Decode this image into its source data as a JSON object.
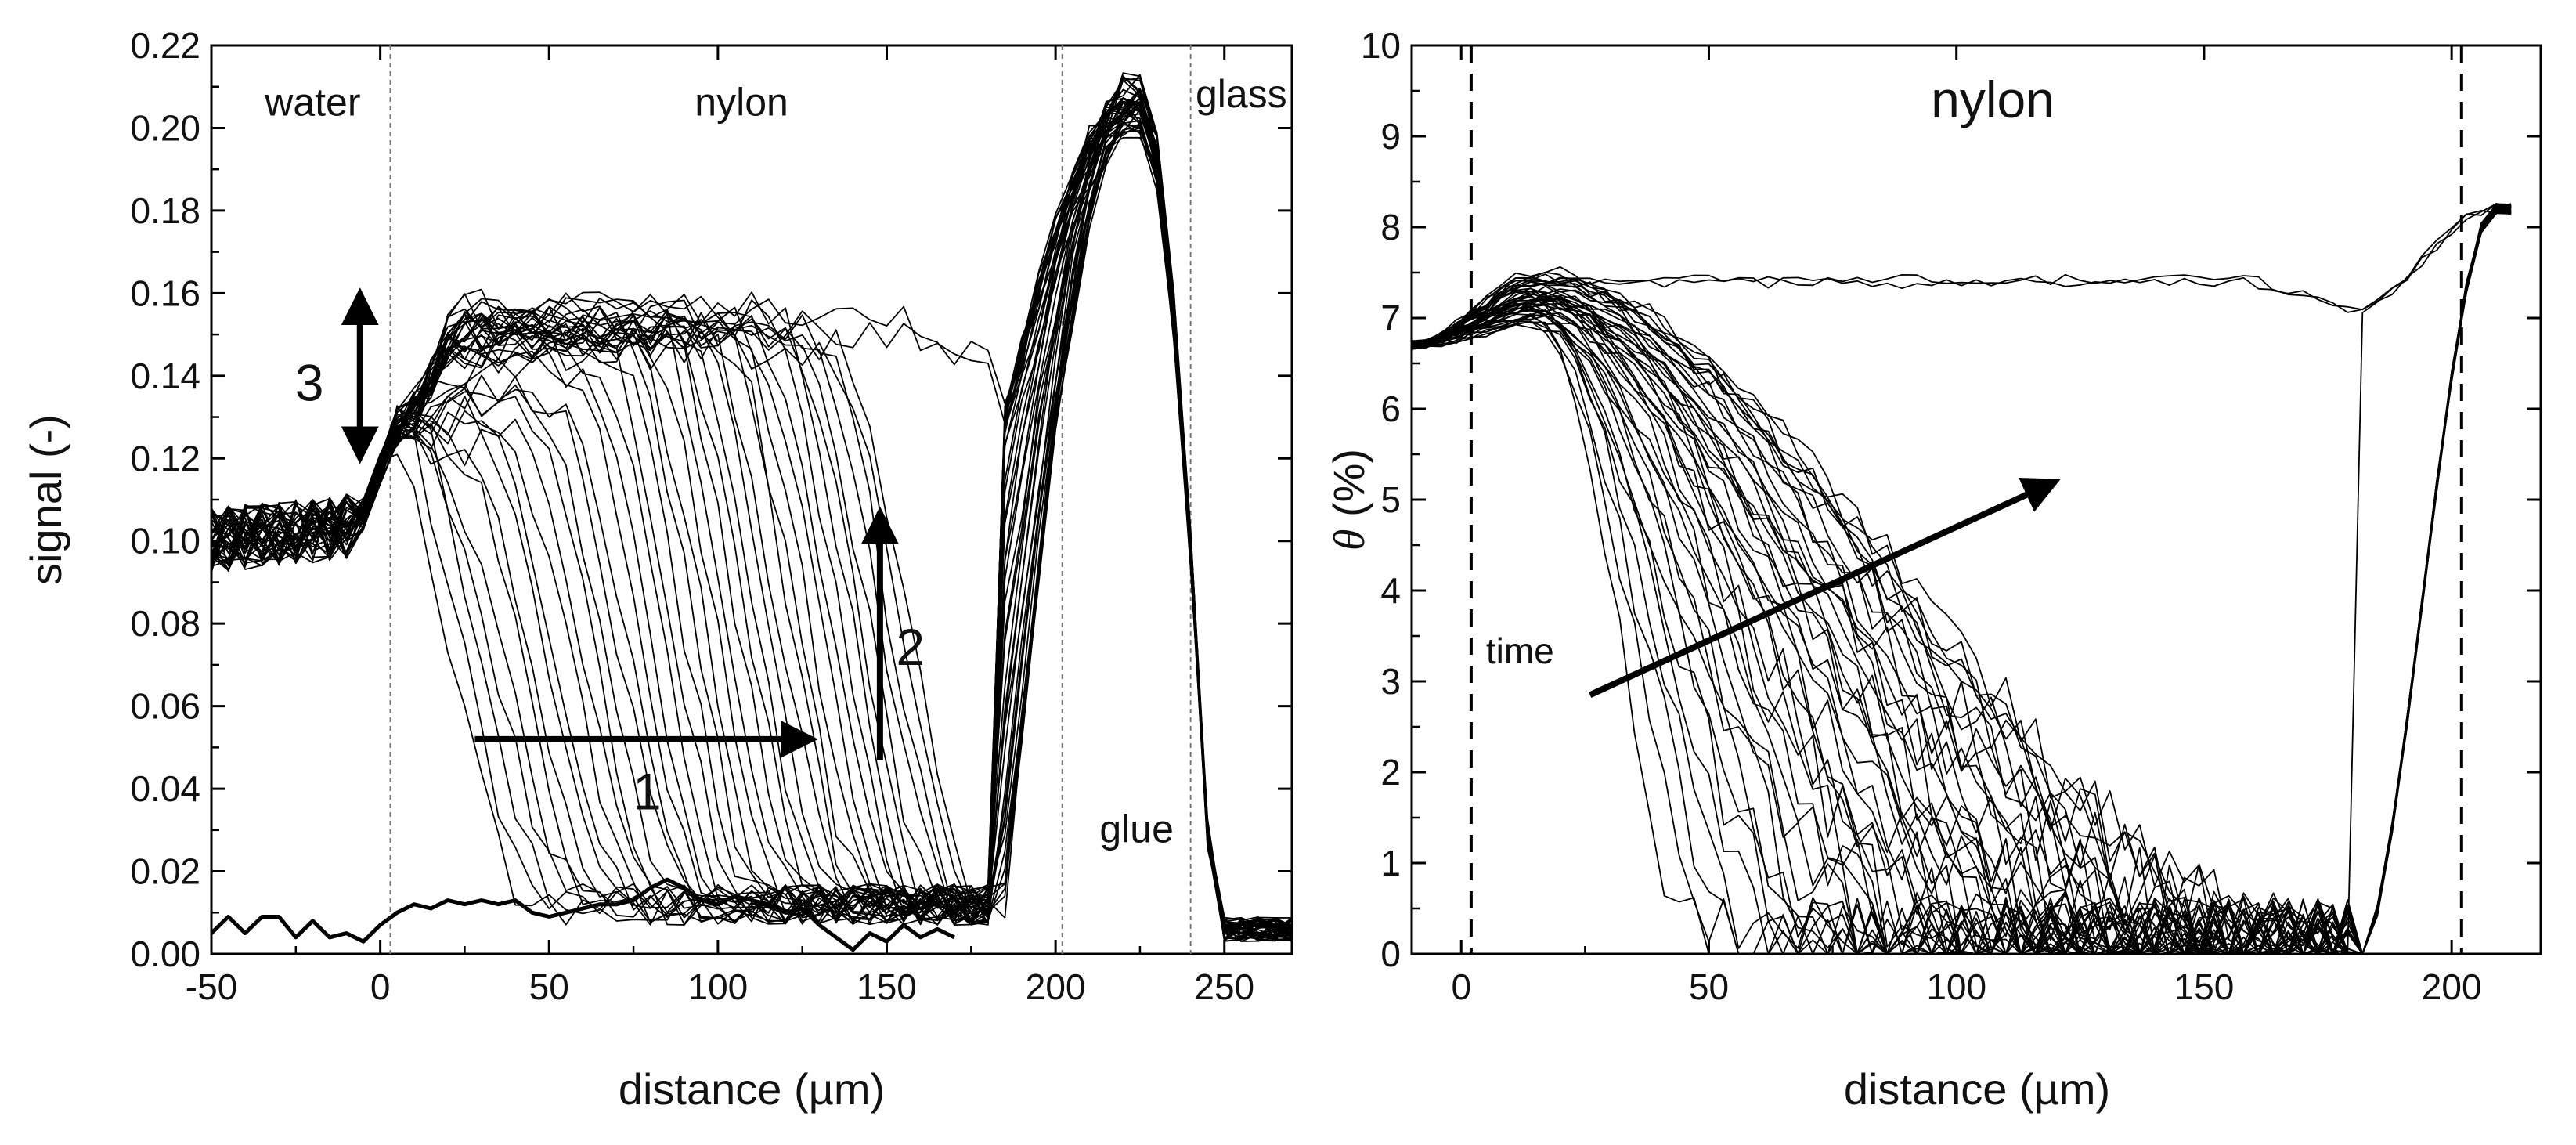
{
  "figure": {
    "panels": 2
  },
  "chart_data": [
    {
      "type": "line",
      "panel": "left",
      "title": "",
      "xlabel": "distance (µm)",
      "ylabel": "signal (-)",
      "xlim": [
        -50,
        270
      ],
      "ylim": [
        0,
        0.22
      ],
      "xticks": [
        -50,
        0,
        50,
        100,
        150,
        200,
        250
      ],
      "xtick_labels": [
        "-50",
        "0",
        "50",
        "100",
        "150",
        "200",
        "250"
      ],
      "yticks": [
        0,
        0.02,
        0.04,
        0.06,
        0.08,
        0.1,
        0.12,
        0.14,
        0.16,
        0.18,
        0.2,
        0.22
      ],
      "ytick_labels": [
        "0.00",
        "0.02",
        "0.04",
        "0.06",
        "0.08",
        "0.10",
        "0.12",
        "0.14",
        "0.16",
        "0.18",
        "0.20",
        "0.22"
      ],
      "grid": false,
      "boundaries": [
        3,
        202,
        240
      ],
      "regions": [
        {
          "label": "water",
          "x": -20,
          "y": 0.203
        },
        {
          "label": "nylon",
          "x": 107,
          "y": 0.203
        },
        {
          "label": "glass",
          "x": 255,
          "y": 0.205
        },
        {
          "label": "glue",
          "x": 224,
          "y": 0.027
        }
      ],
      "annotations": [
        {
          "label": "1",
          "from": [
            28,
            0.052
          ],
          "to": [
            128,
            0.052
          ],
          "label_at": [
            79,
            0.035
          ]
        },
        {
          "label": "2",
          "from": [
            148,
            0.047
          ],
          "to": [
            148,
            0.107
          ],
          "label_at": [
            157,
            0.07
          ]
        },
        {
          "label": "3",
          "from": [
            -6,
            0.12
          ],
          "to": [
            -6,
            0.16
          ],
          "double_headed": true,
          "label_at": [
            -21,
            0.134
          ]
        }
      ],
      "series_summary": {
        "count": 44,
        "description": "Successive signal profiles over time",
        "water_level": 0.1,
        "nylon_plateau": 0.152,
        "front_start_x": 40,
        "front_end_x": 180,
        "peak_x": 222,
        "peak_y": 0.205
      },
      "baseline_series": {
        "name": "initial profile",
        "x": [
          -50,
          -45,
          -40,
          -35,
          -30,
          -25,
          -20,
          -15,
          -10,
          -5,
          0,
          5,
          10,
          15,
          20,
          25,
          30,
          35,
          40,
          45,
          50,
          55,
          60,
          65,
          70,
          75,
          80,
          85,
          90,
          95,
          100,
          105,
          110,
          115,
          120,
          125,
          130,
          135,
          140,
          145,
          150,
          155,
          160,
          165,
          170
        ],
        "y": [
          0.005,
          0.009,
          0.005,
          0.009,
          0.009,
          0.004,
          0.008,
          0.004,
          0.005,
          0.003,
          0.007,
          0.01,
          0.012,
          0.011,
          0.013,
          0.012,
          0.013,
          0.012,
          0.013,
          0.01,
          0.009,
          0.01,
          0.011,
          0.012,
          0.012,
          0.013,
          0.016,
          0.018,
          0.016,
          0.013,
          0.012,
          0.014,
          0.013,
          0.012,
          0.01,
          0.011,
          0.007,
          0.004,
          0.001,
          0.005,
          0.003,
          0.007,
          0.004,
          0.006,
          0.004
        ]
      }
    },
    {
      "type": "line",
      "panel": "right",
      "title": "nylon",
      "xlabel": "distance (µm)",
      "ylabel_symbol": "θ",
      "ylabel_rest": " (%)",
      "xlim": [
        -10,
        218
      ],
      "ylim": [
        0,
        10
      ],
      "xticks": [
        0,
        50,
        100,
        150,
        200
      ],
      "xtick_labels": [
        "0",
        "50",
        "100",
        "150",
        "200"
      ],
      "yticks": [
        0,
        1,
        2,
        3,
        4,
        5,
        6,
        7,
        8,
        9,
        10
      ],
      "ytick_labels": [
        "0",
        "1",
        "2",
        "3",
        "4",
        "5",
        "6",
        "7",
        "8",
        "9",
        "10"
      ],
      "grid": false,
      "boundaries": [
        2,
        202
      ],
      "annotations": [
        {
          "label": "time",
          "from": [
            26,
            2.85
          ],
          "to": [
            120,
            5.2
          ],
          "label_at": [
            5,
            3.2
          ]
        }
      ],
      "series_summary": {
        "count": 44,
        "description": "Successive water content profiles over time",
        "plateau": 7.45,
        "left_value": 6.7,
        "right_value": 8.2,
        "front_start_x": 50,
        "front_end_x": 182
      }
    }
  ]
}
